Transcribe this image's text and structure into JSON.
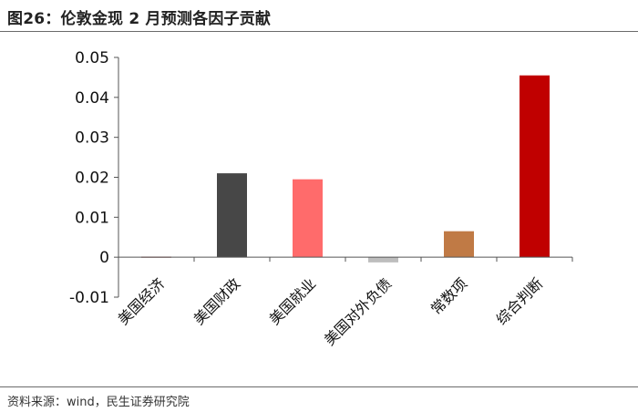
{
  "header": {
    "title": "图26：伦敦金现 2 月预测各因子贡献"
  },
  "footer": {
    "source": "资料来源：wind，民生证券研究院"
  },
  "chart_data": {
    "type": "bar",
    "title": "",
    "xlabel": "",
    "ylabel": "",
    "categories": [
      "美国经济",
      "美国财政",
      "美国就业",
      "美国对外负债",
      "常数项",
      "综合判断"
    ],
    "values": [
      0.0,
      0.021,
      0.0195,
      -0.0013,
      0.0065,
      0.0455
    ],
    "colors": [
      "#c8a0a0",
      "#474747",
      "#ff6b6b",
      "#bdbdbd",
      "#c07a45",
      "#c00000"
    ],
    "ylim": [
      -0.01,
      0.05
    ],
    "yticks": [
      -0.01,
      0,
      0.01,
      0.02,
      0.03,
      0.04,
      0.05
    ],
    "ytick_labels": [
      "-0.01",
      "0",
      "0.01",
      "0.02",
      "0.03",
      "0.04",
      "0.05"
    ],
    "grid": false,
    "legend": "none"
  }
}
